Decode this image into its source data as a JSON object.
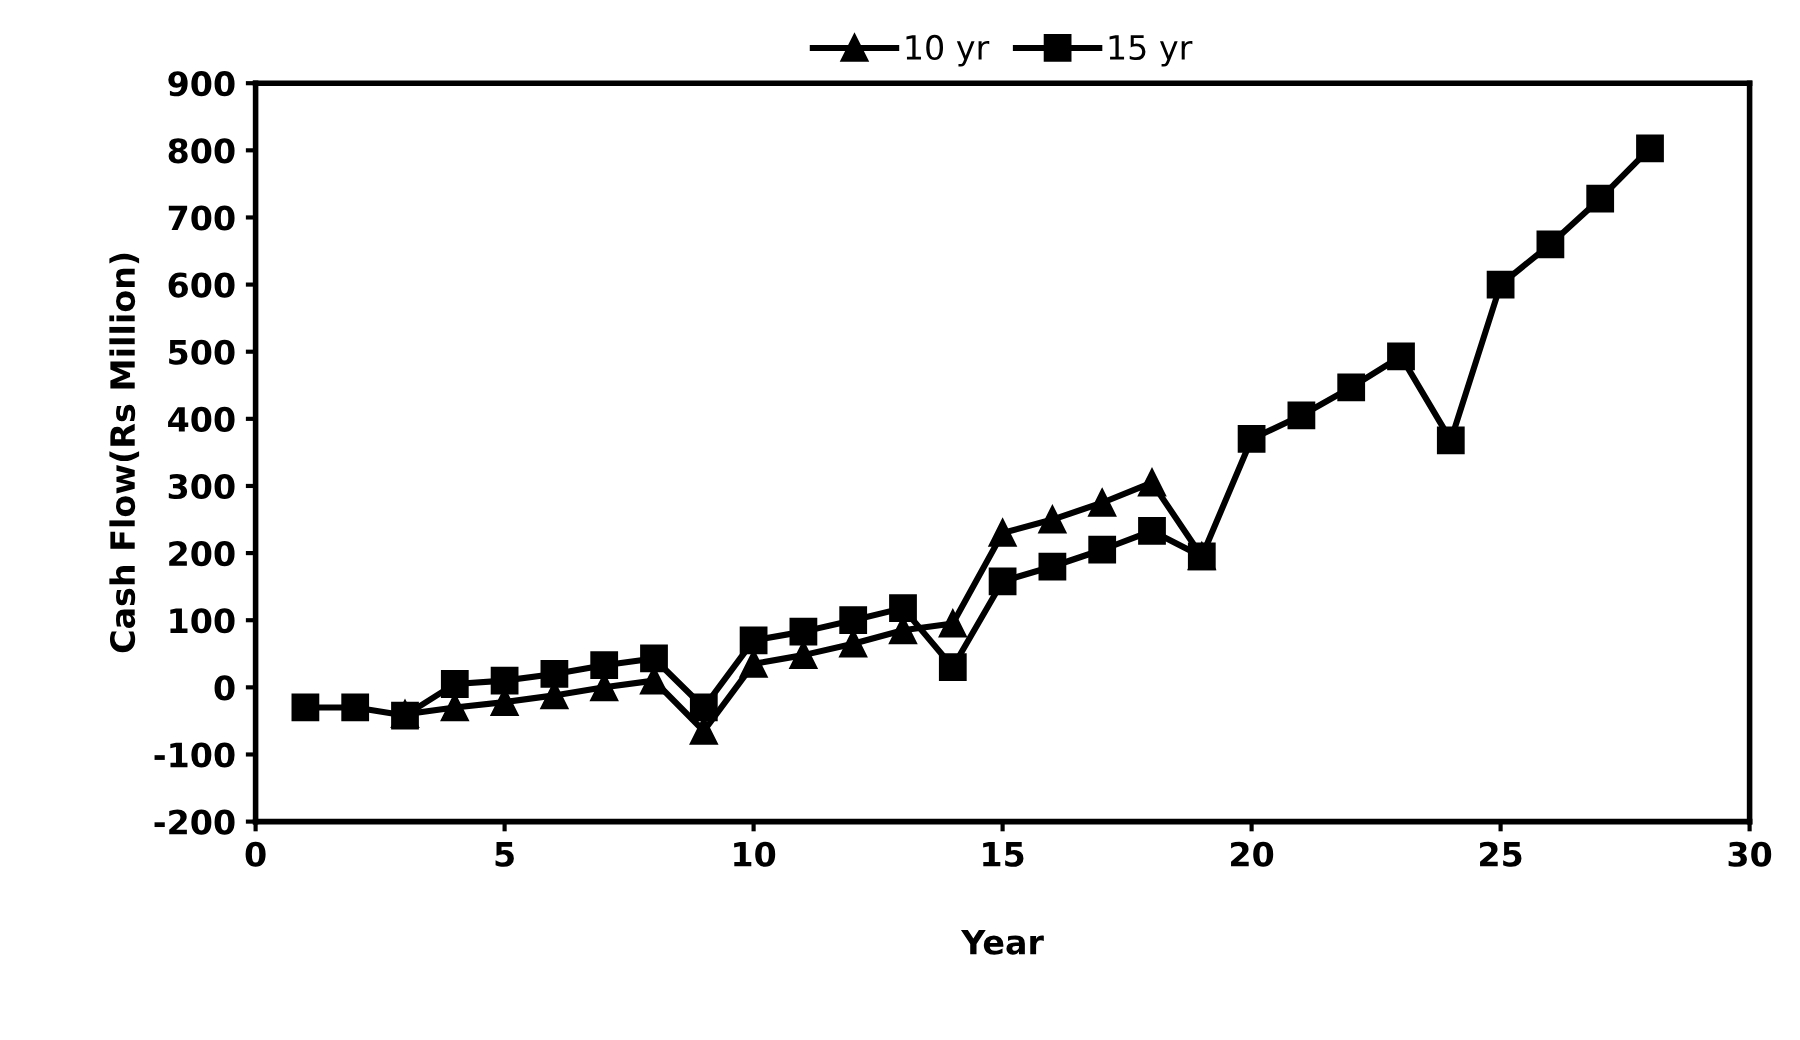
{
  "chart_data": {
    "type": "line",
    "xlabel": "Year",
    "ylabel": "Cash Flow(Rs Million)",
    "x": [
      1,
      2,
      3,
      4,
      5,
      6,
      7,
      8,
      9,
      10,
      11,
      12,
      13,
      14,
      15,
      16,
      17,
      18,
      19,
      20,
      21,
      22,
      23,
      24,
      25,
      26,
      27,
      28
    ],
    "series": [
      {
        "name": "10 yr",
        "color": "#000000",
        "marker": "triangle",
        "values": [
          null,
          null,
          -40,
          -30,
          -22,
          -12,
          0,
          10,
          -65,
          35,
          48,
          65,
          85,
          95,
          230,
          250,
          275,
          305,
          195,
          null,
          null,
          null,
          null,
          null,
          null,
          null,
          null,
          null
        ]
      },
      {
        "name": "15 yr",
        "color": "#000000",
        "marker": "square",
        "values": [
          -30,
          -30,
          -42,
          5,
          10,
          20,
          33,
          43,
          -30,
          70,
          83,
          100,
          118,
          30,
          158,
          180,
          205,
          233,
          195,
          370,
          405,
          447,
          493,
          368,
          600,
          660,
          728,
          803
        ]
      }
    ],
    "xlim": [
      0,
      30
    ],
    "xticks": [
      0,
      5,
      10,
      15,
      20,
      25,
      30
    ],
    "ylim": [
      -200,
      900
    ],
    "yticks": [
      -200,
      -100,
      0,
      100,
      200,
      300,
      400,
      500,
      600,
      700,
      800,
      900
    ],
    "grid": false,
    "legend": "top",
    "line_style": "solid"
  }
}
